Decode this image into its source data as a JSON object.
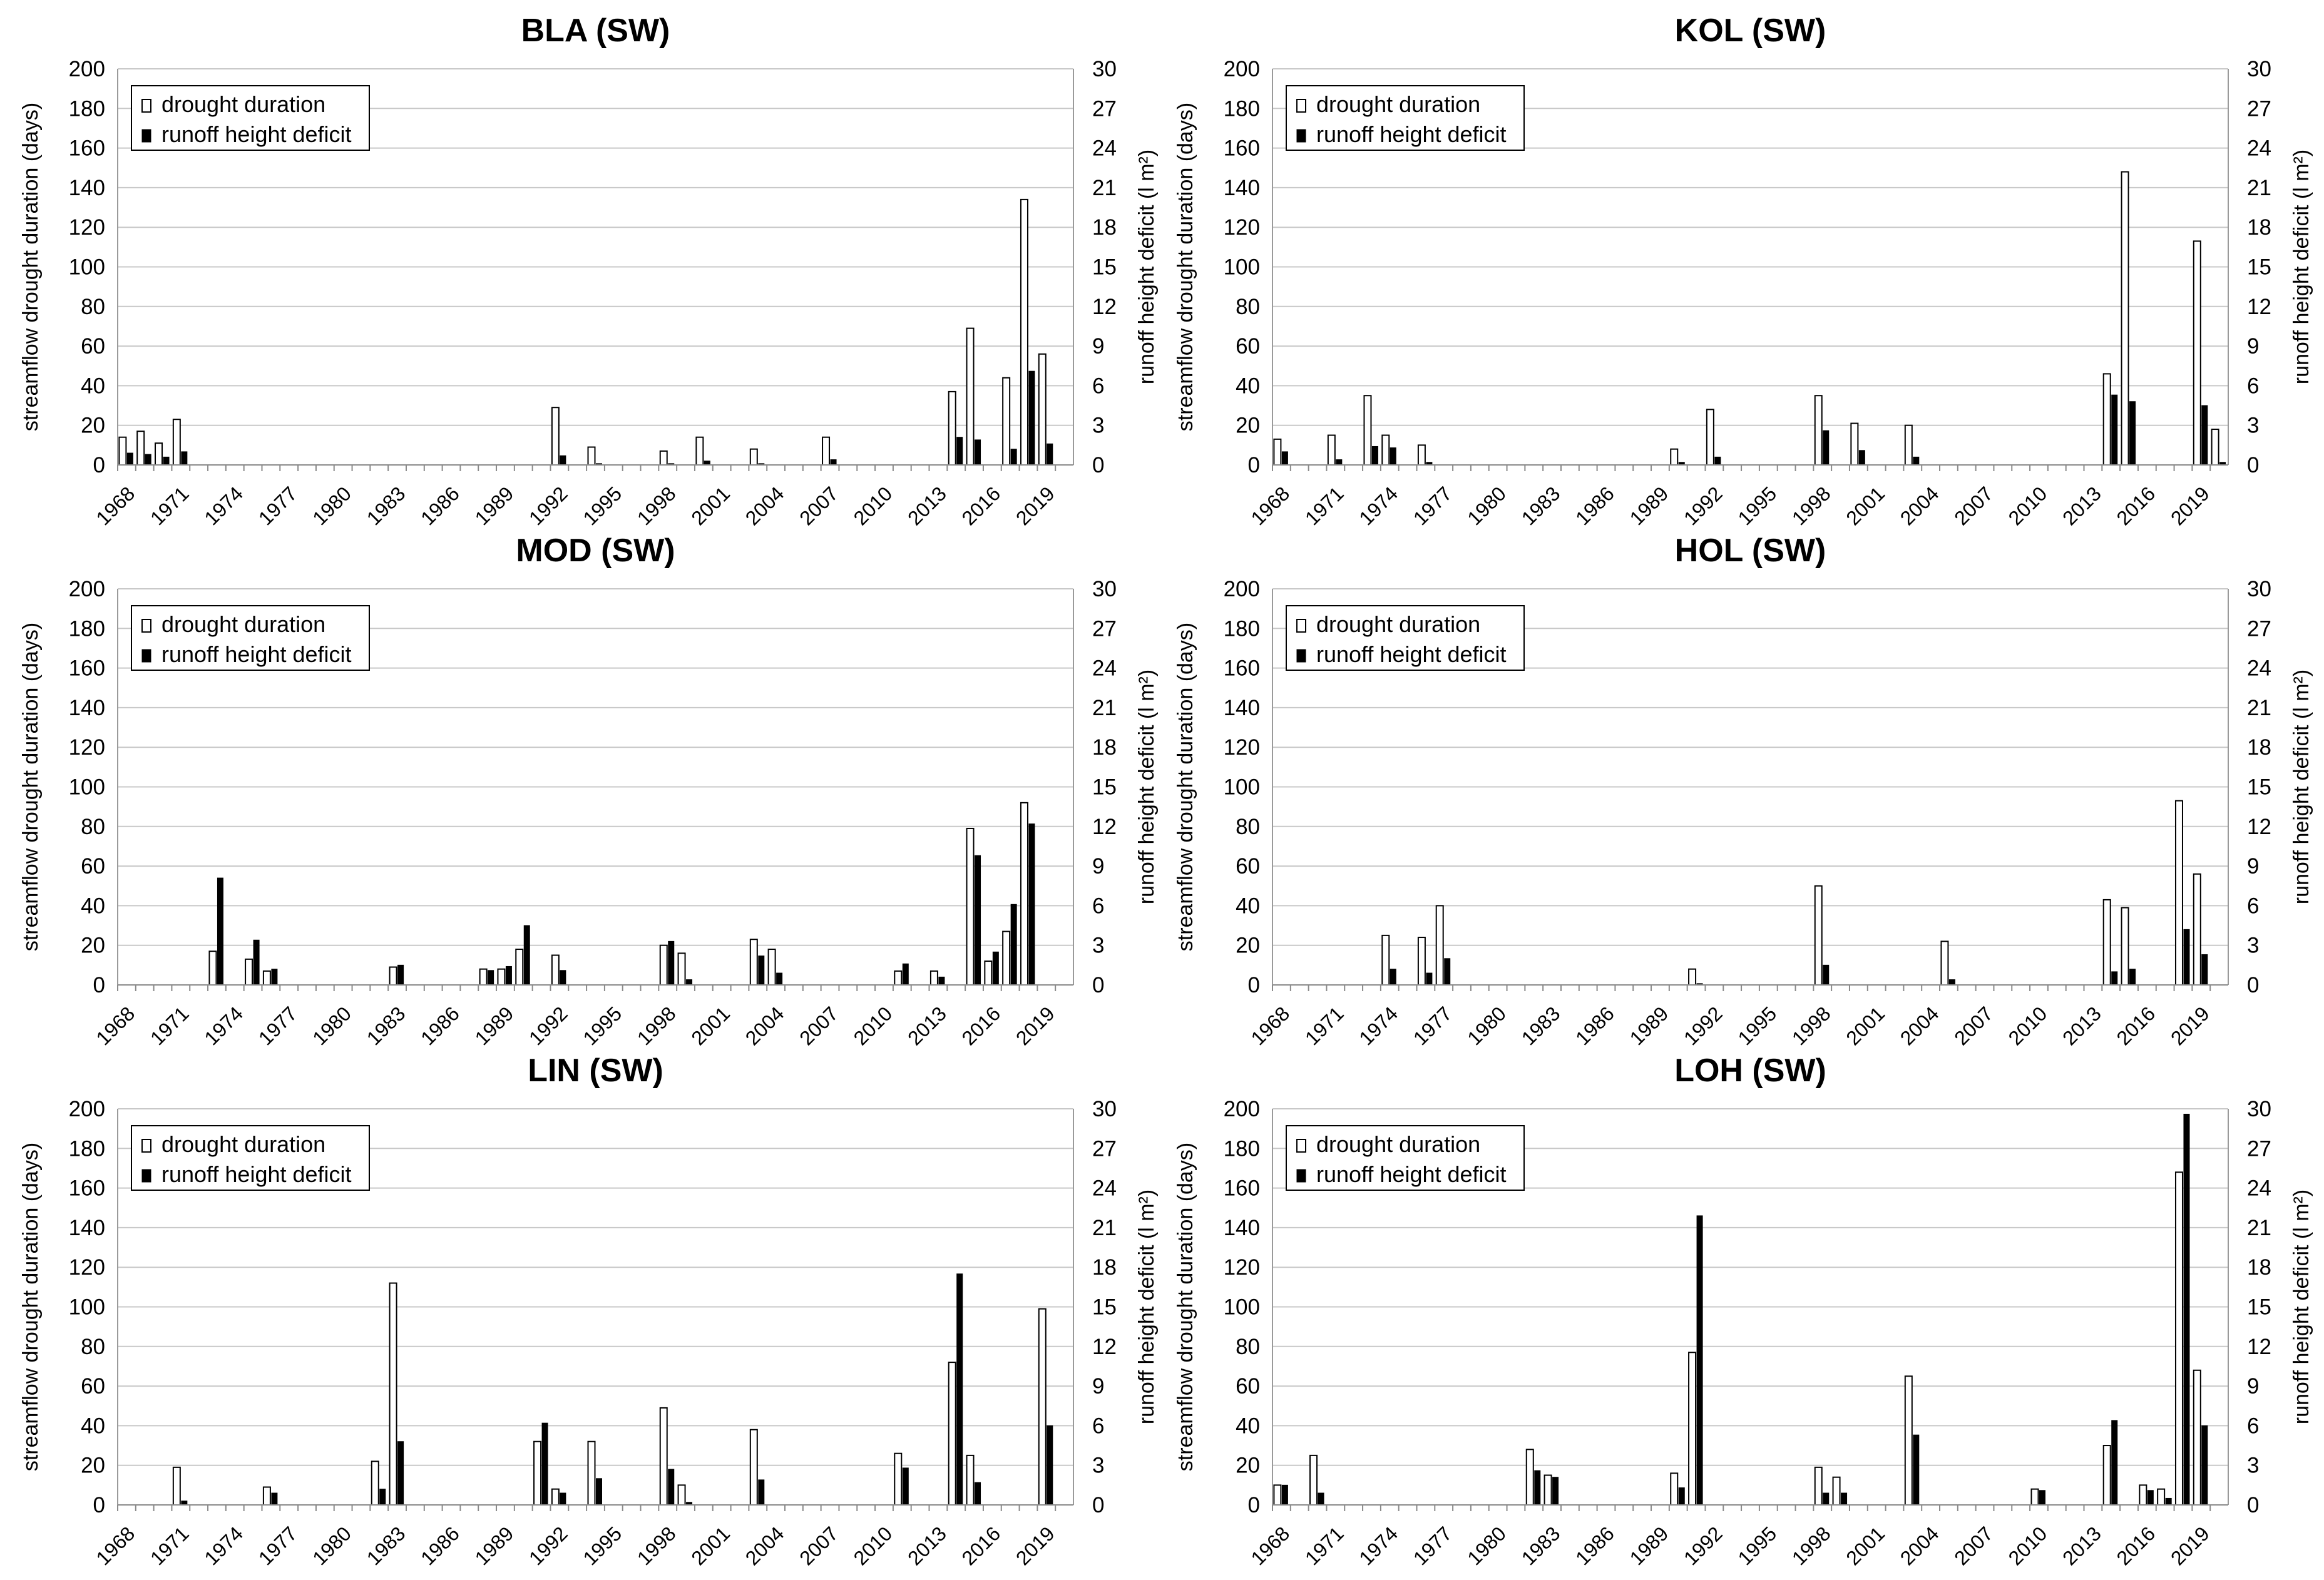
{
  "chart_data": [
    {
      "type": "bar",
      "title": "BLA (SW)",
      "ylabel": "streamflow drought duration (days)",
      "y2label": "runoff height deficit (l m²)",
      "ylim": [
        0,
        200
      ],
      "y2lim": [
        0,
        30
      ],
      "yticks": [
        "0",
        "20",
        "40",
        "60",
        "80",
        "100",
        "120",
        "140",
        "160",
        "180",
        "200"
      ],
      "y2ticks": [
        "0",
        "3",
        "6",
        "9",
        "12",
        "15",
        "18",
        "21",
        "24",
        "27",
        "30"
      ],
      "xticks": [
        "1968",
        "1971",
        "1974",
        "1977",
        "1980",
        "1983",
        "1986",
        "1989",
        "1992",
        "1995",
        "1998",
        "2001",
        "2004",
        "2007",
        "2010",
        "2013",
        "2016",
        "2019"
      ],
      "legend": [
        "drought duration",
        "runoff height deficit"
      ],
      "grid": true,
      "series": [
        {
          "name": "drought duration",
          "points": [
            [
              1968,
              14
            ],
            [
              1969,
              17
            ],
            [
              1970,
              11
            ],
            [
              1971,
              23
            ],
            [
              1992,
              29
            ],
            [
              1994,
              9
            ],
            [
              1998,
              7
            ],
            [
              2000,
              14
            ],
            [
              2003,
              8
            ],
            [
              2007,
              14
            ],
            [
              2014,
              37
            ],
            [
              2015,
              69
            ],
            [
              2017,
              44
            ],
            [
              2018,
              134
            ],
            [
              2019,
              56
            ]
          ]
        },
        {
          "name": "runoff height deficit",
          "points": [
            [
              1968,
              0.9
            ],
            [
              1969,
              0.8
            ],
            [
              1970,
              0.6
            ],
            [
              1971,
              1.0
            ],
            [
              1992,
              0.7
            ],
            [
              1994,
              0.1
            ],
            [
              1998,
              0.1
            ],
            [
              2000,
              0.3
            ],
            [
              2003,
              0.1
            ],
            [
              2007,
              0.4
            ],
            [
              2014,
              2.1
            ],
            [
              2015,
              1.9
            ],
            [
              2017,
              1.2
            ],
            [
              2018,
              7.1
            ],
            [
              2019,
              1.6
            ]
          ]
        }
      ]
    },
    {
      "type": "bar",
      "title": "KOL (SW)",
      "ylabel": "streamflow drought duration (days)",
      "y2label": "runoff height deficit (l m²)",
      "ylim": [
        0,
        200
      ],
      "y2lim": [
        0,
        30
      ],
      "yticks": [
        "0",
        "20",
        "40",
        "60",
        "80",
        "100",
        "120",
        "140",
        "160",
        "180",
        "200"
      ],
      "y2ticks": [
        "0",
        "3",
        "6",
        "9",
        "12",
        "15",
        "18",
        "21",
        "24",
        "27",
        "30"
      ],
      "xticks": [
        "1968",
        "1971",
        "1974",
        "1977",
        "1980",
        "1983",
        "1986",
        "1989",
        "1992",
        "1995",
        "1998",
        "2001",
        "2004",
        "2007",
        "2010",
        "2013",
        "2016",
        "2019"
      ],
      "legend": [
        "drought duration",
        "runoff height deficit"
      ],
      "grid": true,
      "series": [
        {
          "name": "drought duration",
          "points": [
            [
              1968,
              13
            ],
            [
              1971,
              15
            ],
            [
              1973,
              35
            ],
            [
              1974,
              15
            ],
            [
              1976,
              10
            ],
            [
              1990,
              8
            ],
            [
              1992,
              28
            ],
            [
              1998,
              35
            ],
            [
              2000,
              21
            ],
            [
              2003,
              20
            ],
            [
              2014,
              46
            ],
            [
              2015,
              148
            ],
            [
              2019,
              113
            ],
            [
              2020,
              18
            ]
          ]
        },
        {
          "name": "runoff height deficit",
          "points": [
            [
              1968,
              1.0
            ],
            [
              1971,
              0.4
            ],
            [
              1973,
              1.4
            ],
            [
              1974,
              1.3
            ],
            [
              1976,
              0.2
            ],
            [
              1990,
              0.2
            ],
            [
              1992,
              0.6
            ],
            [
              1998,
              2.6
            ],
            [
              2000,
              1.1
            ],
            [
              2003,
              0.6
            ],
            [
              2014,
              5.3
            ],
            [
              2015,
              4.8
            ],
            [
              2019,
              4.5
            ],
            [
              2020,
              0.2
            ]
          ]
        }
      ]
    },
    {
      "type": "bar",
      "title": "MOD (SW)",
      "ylabel": "streamflow drought duration (days)",
      "y2label": "runoff height deficit (l m²)",
      "ylim": [
        0,
        200
      ],
      "y2lim": [
        0,
        30
      ],
      "yticks": [
        "0",
        "20",
        "40",
        "60",
        "80",
        "100",
        "120",
        "140",
        "160",
        "180",
        "200"
      ],
      "y2ticks": [
        "0",
        "3",
        "6",
        "9",
        "12",
        "15",
        "18",
        "21",
        "24",
        "27",
        "30"
      ],
      "xticks": [
        "1968",
        "1971",
        "1974",
        "1977",
        "1980",
        "1983",
        "1986",
        "1989",
        "1992",
        "1995",
        "1998",
        "2001",
        "2004",
        "2007",
        "2010",
        "2013",
        "2016",
        "2019"
      ],
      "legend": [
        "drought duration",
        "runoff height deficit"
      ],
      "grid": true,
      "series": [
        {
          "name": "drought duration",
          "points": [
            [
              1973,
              17
            ],
            [
              1975,
              13
            ],
            [
              1976,
              7
            ],
            [
              1983,
              9
            ],
            [
              1988,
              8
            ],
            [
              1989,
              8
            ],
            [
              1990,
              18
            ],
            [
              1992,
              15
            ],
            [
              1998,
              20
            ],
            [
              1999,
              16
            ],
            [
              2003,
              23
            ],
            [
              2004,
              18
            ],
            [
              2011,
              7
            ],
            [
              2013,
              7
            ],
            [
              2015,
              79
            ],
            [
              2016,
              12
            ],
            [
              2017,
              27
            ],
            [
              2018,
              92
            ]
          ]
        },
        {
          "name": "runoff height deficit",
          "points": [
            [
              1973,
              8.1
            ],
            [
              1975,
              3.4
            ],
            [
              1976,
              1.2
            ],
            [
              1983,
              1.5
            ],
            [
              1988,
              1.1
            ],
            [
              1989,
              1.4
            ],
            [
              1990,
              4.5
            ],
            [
              1992,
              1.1
            ],
            [
              1998,
              3.3
            ],
            [
              1999,
              0.4
            ],
            [
              2003,
              2.2
            ],
            [
              2004,
              0.9
            ],
            [
              2011,
              1.6
            ],
            [
              2013,
              0.6
            ],
            [
              2015,
              9.8
            ],
            [
              2016,
              2.5
            ],
            [
              2017,
              6.1
            ],
            [
              2018,
              12.2
            ]
          ]
        }
      ]
    },
    {
      "type": "bar",
      "title": "HOL (SW)",
      "ylabel": "streamflow drought duration (days)",
      "y2label": "runoff height deficit (l m²)",
      "ylim": [
        0,
        200
      ],
      "y2lim": [
        0,
        30
      ],
      "yticks": [
        "0",
        "20",
        "40",
        "60",
        "80",
        "100",
        "120",
        "140",
        "160",
        "180",
        "200"
      ],
      "y2ticks": [
        "0",
        "3",
        "6",
        "9",
        "12",
        "15",
        "18",
        "21",
        "24",
        "27",
        "30"
      ],
      "xticks": [
        "1968",
        "1971",
        "1974",
        "1977",
        "1980",
        "1983",
        "1986",
        "1989",
        "1992",
        "1995",
        "1998",
        "2001",
        "2004",
        "2007",
        "2010",
        "2013",
        "2016",
        "2019"
      ],
      "legend": [
        "drought duration",
        "runoff height deficit"
      ],
      "grid": true,
      "series": [
        {
          "name": "drought duration",
          "points": [
            [
              1974,
              25
            ],
            [
              1976,
              24
            ],
            [
              1977,
              40
            ],
            [
              1991,
              8
            ],
            [
              1998,
              50
            ],
            [
              2005,
              22
            ],
            [
              2014,
              43
            ],
            [
              2015,
              39
            ],
            [
              2018,
              93
            ],
            [
              2019,
              56
            ]
          ]
        },
        {
          "name": "runoff height deficit",
          "points": [
            [
              1974,
              1.2
            ],
            [
              1976,
              0.9
            ],
            [
              1977,
              2.0
            ],
            [
              1991,
              0.1
            ],
            [
              1998,
              1.5
            ],
            [
              2005,
              0.4
            ],
            [
              2014,
              1.0
            ],
            [
              2015,
              1.2
            ],
            [
              2018,
              4.2
            ],
            [
              2019,
              2.3
            ]
          ]
        }
      ]
    },
    {
      "type": "bar",
      "title": "LIN (SW)",
      "ylabel": "streamflow drought duration (days)",
      "y2label": "runoff height deficit (l m²)",
      "ylim": [
        0,
        200
      ],
      "y2lim": [
        0,
        30
      ],
      "yticks": [
        "0",
        "20",
        "40",
        "60",
        "80",
        "100",
        "120",
        "140",
        "160",
        "180",
        "200"
      ],
      "y2ticks": [
        "0",
        "3",
        "6",
        "9",
        "12",
        "15",
        "18",
        "21",
        "24",
        "27",
        "30"
      ],
      "xticks": [
        "1968",
        "1971",
        "1974",
        "1977",
        "1980",
        "1983",
        "1986",
        "1989",
        "1992",
        "1995",
        "1998",
        "2001",
        "2004",
        "2007",
        "2010",
        "2013",
        "2016",
        "2019"
      ],
      "legend": [
        "drought duration",
        "runoff height deficit"
      ],
      "grid": true,
      "series": [
        {
          "name": "drought duration",
          "points": [
            [
              1971,
              19
            ],
            [
              1976,
              9
            ],
            [
              1982,
              22
            ],
            [
              1983,
              112
            ],
            [
              1991,
              32
            ],
            [
              1992,
              8
            ],
            [
              1994,
              32
            ],
            [
              1998,
              49
            ],
            [
              1999,
              10
            ],
            [
              2003,
              38
            ],
            [
              2011,
              26
            ],
            [
              2014,
              72
            ],
            [
              2015,
              25
            ],
            [
              2019,
              99
            ]
          ]
        },
        {
          "name": "runoff height deficit",
          "points": [
            [
              1971,
              0.3
            ],
            [
              1976,
              0.9
            ],
            [
              1982,
              1.2
            ],
            [
              1983,
              4.8
            ],
            [
              1991,
              6.2
            ],
            [
              1992,
              0.9
            ],
            [
              1994,
              2.0
            ],
            [
              1998,
              2.7
            ],
            [
              1999,
              0.2
            ],
            [
              2003,
              1.9
            ],
            [
              2011,
              2.8
            ],
            [
              2014,
              17.5
            ],
            [
              2015,
              1.7
            ],
            [
              2019,
              6.0
            ]
          ]
        }
      ]
    },
    {
      "type": "bar",
      "title": "LOH (SW)",
      "ylabel": "streamflow drought duration (days)",
      "y2label": "runoff height deficit (l m²)",
      "ylim": [
        0,
        200
      ],
      "y2lim": [
        0,
        30
      ],
      "yticks": [
        "0",
        "20",
        "40",
        "60",
        "80",
        "100",
        "120",
        "140",
        "160",
        "180",
        "200"
      ],
      "y2ticks": [
        "0",
        "3",
        "6",
        "9",
        "12",
        "15",
        "18",
        "21",
        "24",
        "27",
        "30"
      ],
      "xticks": [
        "1968",
        "1971",
        "1974",
        "1977",
        "1980",
        "1983",
        "1986",
        "1989",
        "1992",
        "1995",
        "1998",
        "2001",
        "2004",
        "2007",
        "2010",
        "2013",
        "2016",
        "2019"
      ],
      "legend": [
        "drought duration",
        "runoff height deficit"
      ],
      "grid": true,
      "series": [
        {
          "name": "drought duration",
          "points": [
            [
              1968,
              10
            ],
            [
              1970,
              25
            ],
            [
              1982,
              28
            ],
            [
              1983,
              15
            ],
            [
              1990,
              16
            ],
            [
              1991,
              77
            ],
            [
              1998,
              19
            ],
            [
              1999,
              14
            ],
            [
              2003,
              65
            ],
            [
              2010,
              8
            ],
            [
              2014,
              30
            ],
            [
              2016,
              10
            ],
            [
              2017,
              8
            ],
            [
              2018,
              168
            ],
            [
              2019,
              68
            ]
          ]
        },
        {
          "name": "runoff height deficit",
          "points": [
            [
              1968,
              1.5
            ],
            [
              1970,
              0.9
            ],
            [
              1982,
              2.6
            ],
            [
              1983,
              2.1
            ],
            [
              1990,
              1.3
            ],
            [
              1991,
              21.9
            ],
            [
              1998,
              0.9
            ],
            [
              1999,
              0.9
            ],
            [
              2003,
              5.3
            ],
            [
              2010,
              1.1
            ],
            [
              2014,
              6.4
            ],
            [
              2016,
              1.1
            ],
            [
              2017,
              0.5
            ],
            [
              2018,
              29.6
            ],
            [
              2019,
              6.0
            ]
          ]
        }
      ]
    }
  ]
}
